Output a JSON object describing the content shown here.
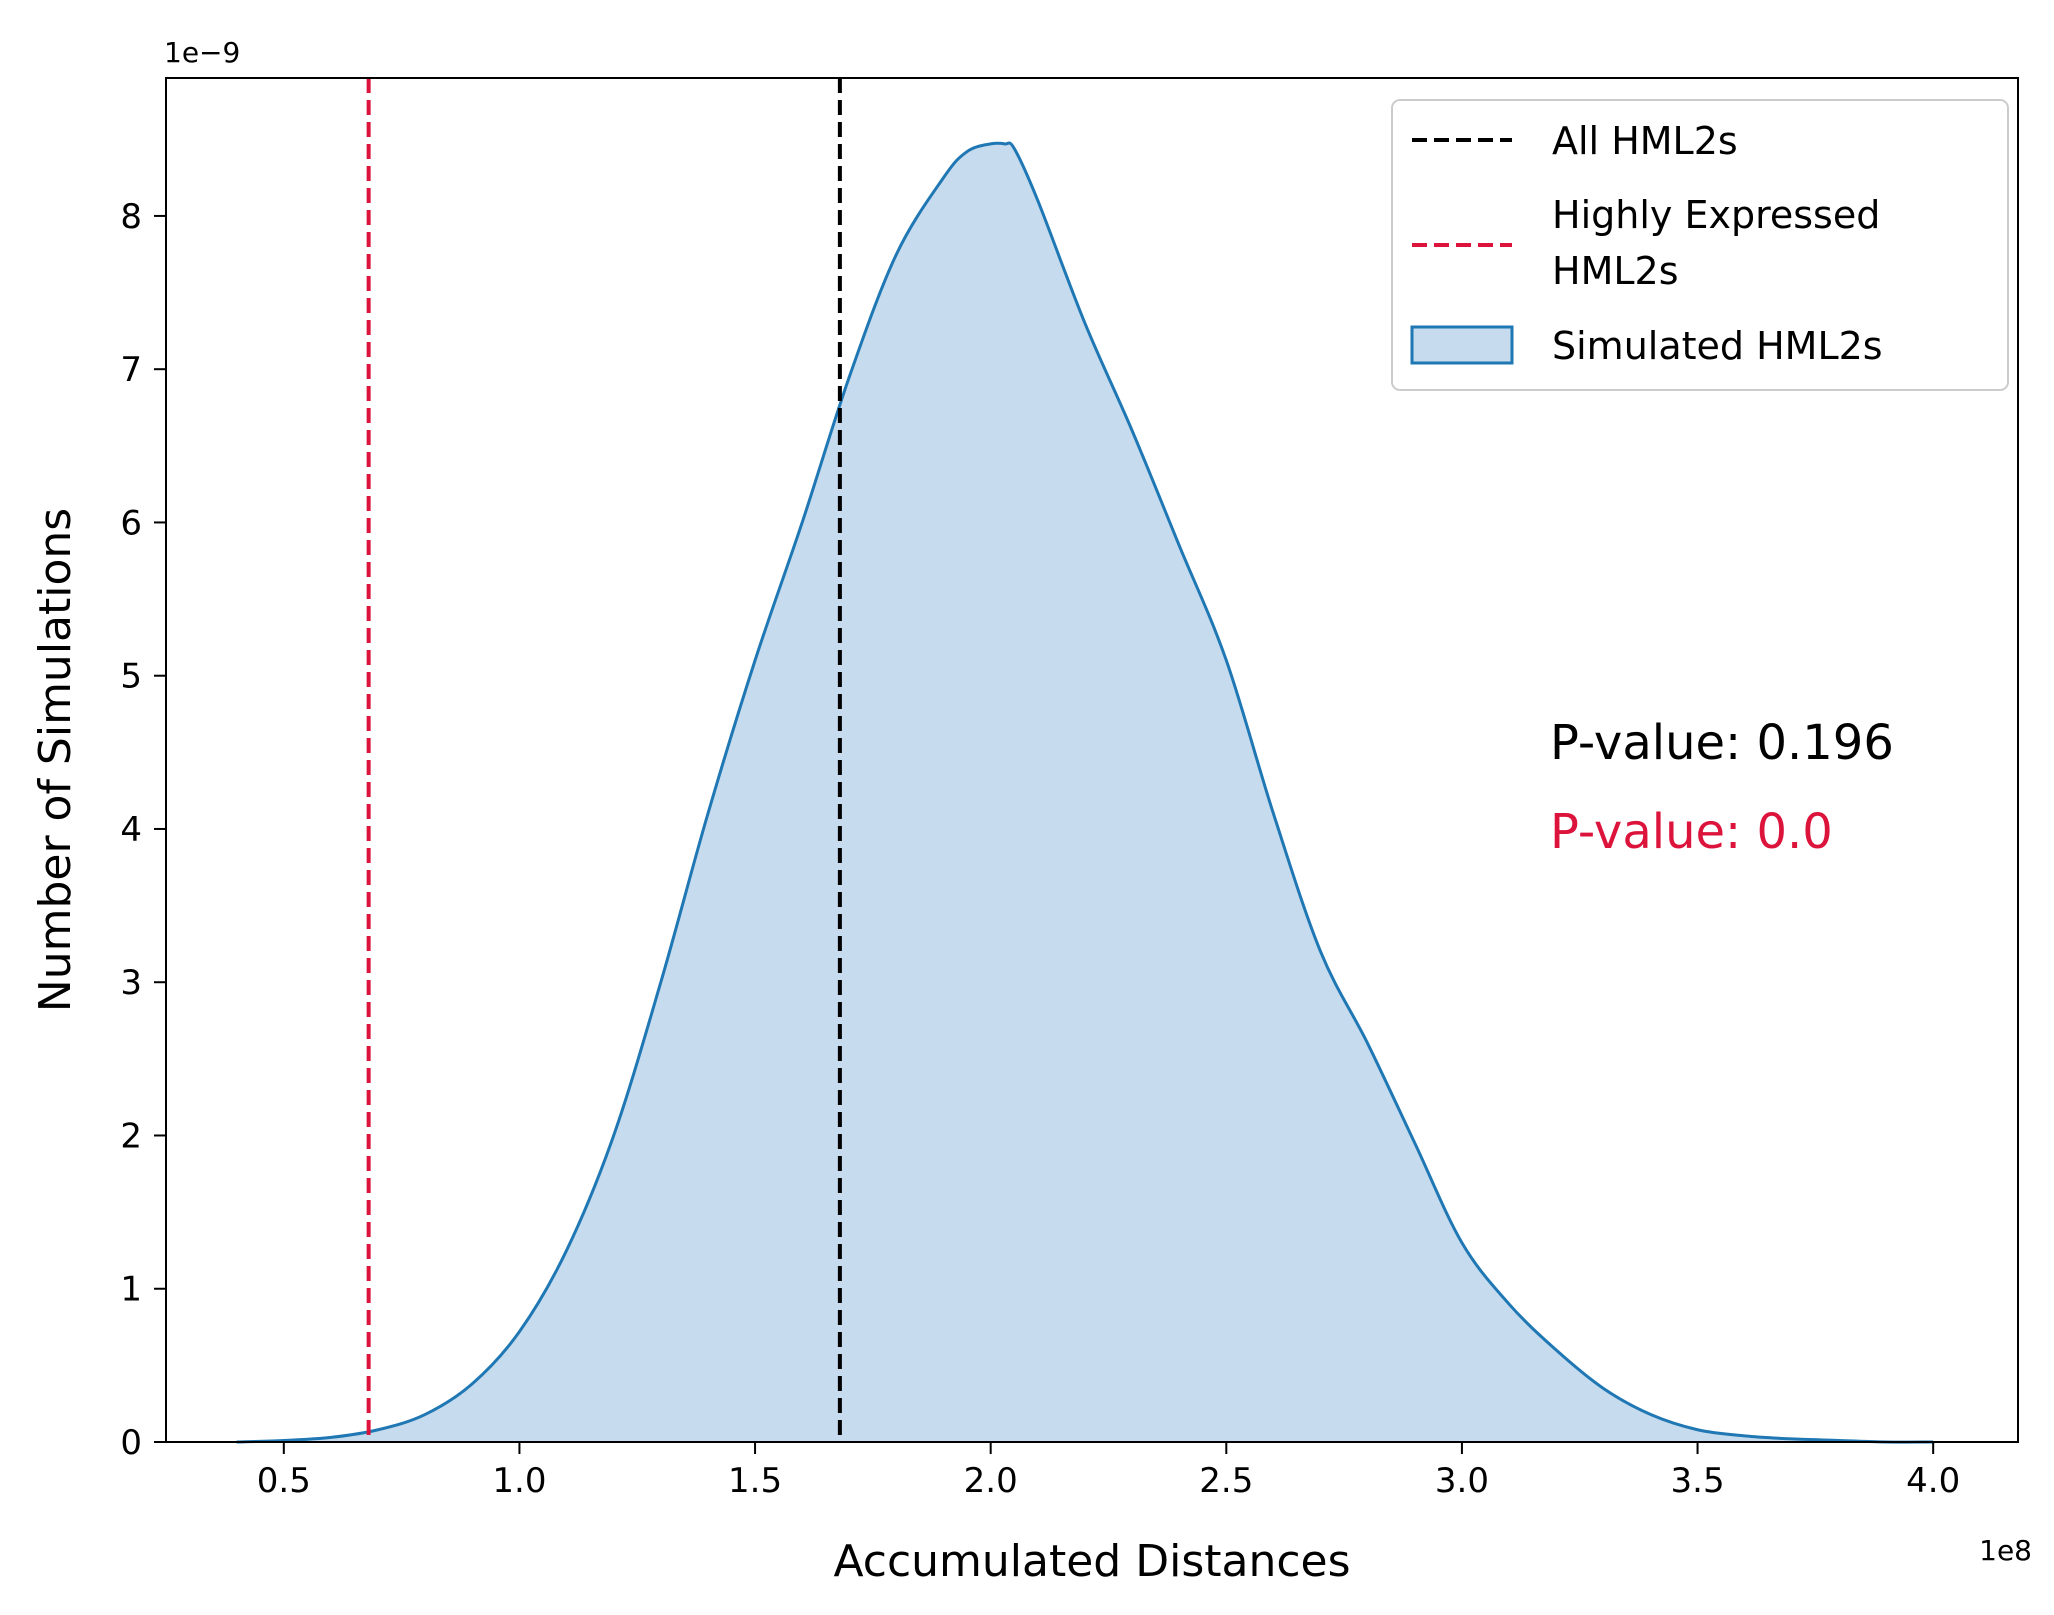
{
  "chart_data": {
    "type": "area",
    "xlabel": "Accumulated Distances",
    "ylabel": "Number of Simulations",
    "x_offset_label": "1e8",
    "y_offset_label": "1e−9",
    "x_scale": 100000000,
    "y_scale": 1e-09,
    "xlim": [
      0.25,
      4.18
    ],
    "ylim": [
      0,
      8.9
    ],
    "x_ticks": [
      0.5,
      1.0,
      1.5,
      2.0,
      2.5,
      3.0,
      3.5,
      4.0
    ],
    "x_tick_labels": [
      "0.5",
      "1.0",
      "1.5",
      "2.0",
      "2.5",
      "3.0",
      "3.5",
      "4.0"
    ],
    "y_ticks": [
      0,
      1,
      2,
      3,
      4,
      5,
      6,
      7,
      8
    ],
    "y_tick_labels": [
      "0",
      "1",
      "2",
      "3",
      "4",
      "5",
      "6",
      "7",
      "8"
    ],
    "grid": false,
    "legend_placement": "top-right",
    "colors": {
      "density_line": "#1f77b4",
      "density_fill": "#c6dbed",
      "all_line": "#000000",
      "high_line": "#dc143c"
    },
    "density": {
      "name": "Simulated HML2s",
      "x": [
        0.4,
        0.5,
        0.6,
        0.7,
        0.8,
        0.9,
        1.0,
        1.1,
        1.2,
        1.3,
        1.4,
        1.5,
        1.6,
        1.7,
        1.8,
        1.9,
        1.95,
        2.0,
        2.03,
        2.05,
        2.1,
        2.2,
        2.3,
        2.4,
        2.5,
        2.6,
        2.7,
        2.8,
        2.9,
        3.0,
        3.1,
        3.2,
        3.3,
        3.4,
        3.5,
        3.6,
        3.7,
        3.8,
        3.9,
        4.0
      ],
      "y": [
        0.0,
        0.01,
        0.03,
        0.08,
        0.18,
        0.38,
        0.72,
        1.25,
        2.0,
        3.0,
        4.1,
        5.1,
        6.0,
        6.95,
        7.75,
        8.25,
        8.42,
        8.47,
        8.47,
        8.44,
        8.1,
        7.3,
        6.6,
        5.85,
        5.1,
        4.1,
        3.2,
        2.6,
        1.95,
        1.3,
        0.9,
        0.6,
        0.35,
        0.18,
        0.08,
        0.04,
        0.02,
        0.01,
        0.0,
        0.0
      ]
    },
    "vlines": [
      {
        "name": "All HML2s",
        "x": 1.68,
        "color": "#000000"
      },
      {
        "name": "Highly Expressed HML2s",
        "x": 0.68,
        "color": "#dc143c"
      }
    ],
    "legend": [
      {
        "type": "line",
        "color": "#000000",
        "lines": [
          "All HML2s"
        ]
      },
      {
        "type": "line",
        "color": "#dc143c",
        "lines": [
          "Highly Expressed",
          "HML2s"
        ]
      },
      {
        "type": "patch",
        "color": "#1f77b4",
        "fill": "#c6dbed",
        "lines": [
          "Simulated HML2s"
        ]
      }
    ],
    "annotations": [
      {
        "text": "P-value: 0.196",
        "color": "#000000"
      },
      {
        "text": "P-value: 0.0",
        "color": "#dc143c"
      }
    ]
  }
}
